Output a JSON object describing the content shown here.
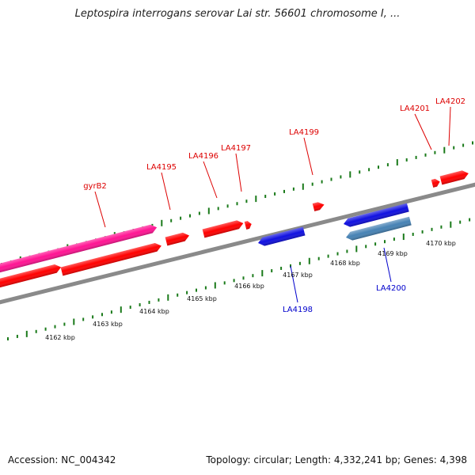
{
  "title": "Leptospira interrogans serovar Lai str. 56601 chromosome I, ...",
  "footer": {
    "accession": "Accession: NC_004342",
    "summary": "Topology: circular; Length: 4,332,241 bp; Genes: 4,398"
  },
  "colors": {
    "forward_gene": "#ff0000",
    "reverse_gene": "#1010e0",
    "rna_feature": "#ff1493",
    "reverse_feature": "#4682b4",
    "backbone": "#8a8a8a",
    "ticks": "#1a7a1a",
    "forward_label": "#dd0000",
    "reverse_label": "#0000cc"
  },
  "axis_labels": [
    "4162 kbp",
    "4163 kbp",
    "4164 kbp",
    "4165 kbp",
    "4166 kbp",
    "4167 kbp",
    "4168 kbp",
    "4169 kbp",
    "4170 kbp"
  ],
  "gene_labels": [
    {
      "text": "gyrB2",
      "strand": "forward"
    },
    {
      "text": "LA4195",
      "strand": "forward"
    },
    {
      "text": "LA4196",
      "strand": "forward"
    },
    {
      "text": "LA4197",
      "strand": "forward"
    },
    {
      "text": "LA4199",
      "strand": "forward"
    },
    {
      "text": "LA4201",
      "strand": "forward"
    },
    {
      "text": "LA4202",
      "strand": "forward"
    },
    {
      "text": "LA4198",
      "strand": "reverse"
    },
    {
      "text": "LA4200",
      "strand": "reverse"
    }
  ]
}
